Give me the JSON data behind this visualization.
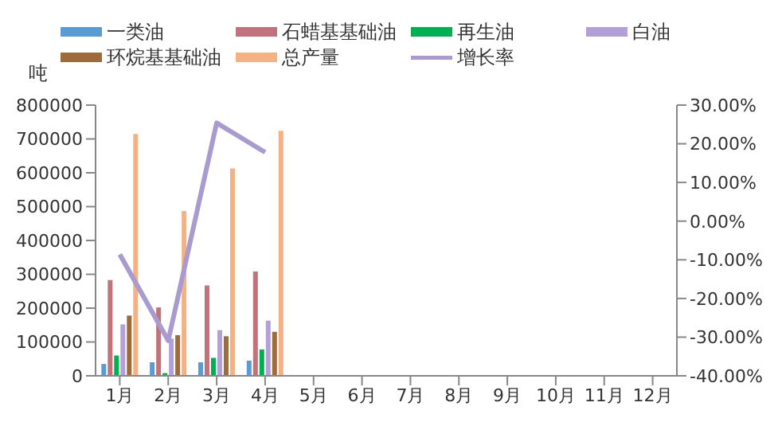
{
  "chart_data": {
    "type": "bar",
    "ylabel": "吨",
    "categories": [
      "1月",
      "2月",
      "3月",
      "4月",
      "5月",
      "6月",
      "7月",
      "8月",
      "9月",
      "10月",
      "11月",
      "12月"
    ],
    "series": [
      {
        "name": "一类油",
        "color": "#5b9bd5",
        "values": [
          35000,
          40000,
          40000,
          45000,
          null,
          null,
          null,
          null,
          null,
          null,
          null,
          null
        ]
      },
      {
        "name": "石蜡基基础油",
        "color": "#c0737a",
        "values": [
          283000,
          202000,
          267000,
          308000,
          null,
          null,
          null,
          null,
          null,
          null,
          null,
          null
        ]
      },
      {
        "name": "再生油",
        "color": "#00b050",
        "values": [
          60000,
          8000,
          53000,
          78000,
          null,
          null,
          null,
          null,
          null,
          null,
          null,
          null
        ]
      },
      {
        "name": "白油",
        "color": "#b4a0d8",
        "values": [
          152000,
          110000,
          135000,
          163000,
          null,
          null,
          null,
          null,
          null,
          null,
          null,
          null
        ]
      },
      {
        "name": "环烷基基础油",
        "color": "#9e6b3a",
        "values": [
          178000,
          120000,
          117000,
          130000,
          null,
          null,
          null,
          null,
          null,
          null,
          null,
          null
        ]
      },
      {
        "name": "总产量",
        "color": "#f4b183",
        "values": [
          715000,
          487000,
          613000,
          724000,
          null,
          null,
          null,
          null,
          null,
          null,
          null,
          null
        ]
      },
      {
        "name": "增长率",
        "type": "line",
        "axis": "y2",
        "color": "#a99bd0",
        "values": [
          -8.6,
          -30.9,
          25.4,
          17.8,
          null,
          null,
          null,
          null,
          null,
          null,
          null,
          null
        ]
      }
    ],
    "ylim": [
      0,
      800000
    ],
    "yticks": [
      0,
      100000,
      200000,
      300000,
      400000,
      500000,
      600000,
      700000,
      800000
    ],
    "y2lim": [
      -40,
      30
    ],
    "y2ticks": [
      {
        "value": -40,
        "label": "-40.00%"
      },
      {
        "value": -30,
        "label": "-30.00%"
      },
      {
        "value": -20,
        "label": "-20.00%"
      },
      {
        "value": -10,
        "label": "-10.00%"
      },
      {
        "value": 0,
        "label": "0.00%"
      },
      {
        "value": 10,
        "label": "10.00%"
      },
      {
        "value": 20,
        "label": "20.00%"
      },
      {
        "value": 30,
        "label": "30.00%"
      }
    ],
    "legend": "top",
    "grid": false,
    "marker": "none"
  }
}
